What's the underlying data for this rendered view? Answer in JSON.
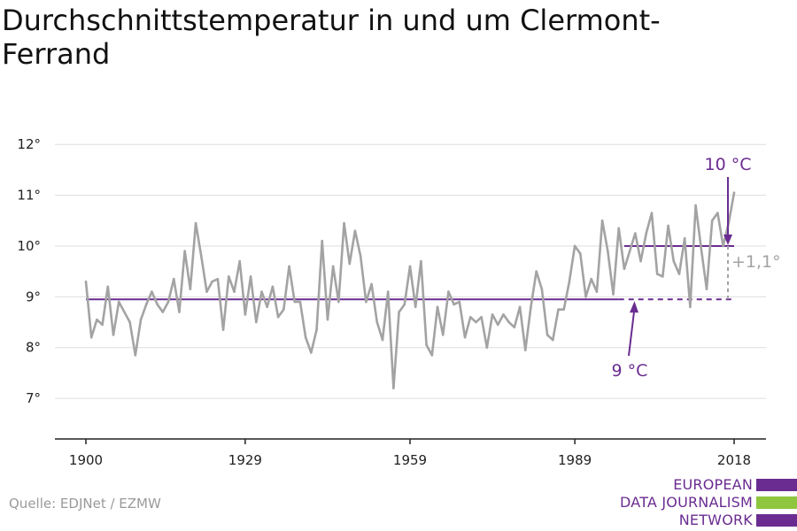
{
  "title": "Durchschnittstemperatur in und um Clermont-Ferrand",
  "source": "Quelle: EDJNet / EZMW",
  "logo": {
    "lines": [
      "EUROPEAN",
      "DATA JOURNALISM",
      "NETWORK"
    ],
    "colors": [
      "#6a2c91",
      "#8ec63f",
      "#6a2c91"
    ]
  },
  "colors": {
    "series": "#a3a3a3",
    "accent": "#6a2c91",
    "grid": "#dddddd",
    "axis": "#222222",
    "diff": "#a3a3a3"
  },
  "chart_data": {
    "type": "line",
    "x_ticks": [
      1900,
      1929,
      1959,
      1989,
      2018
    ],
    "y_ticks": [
      7,
      8,
      9,
      10,
      11,
      12
    ],
    "y_tick_suffix": "°",
    "xlim": [
      1900,
      2018
    ],
    "ylim": [
      6.2,
      12.3
    ],
    "series": [
      {
        "x_start": 1900,
        "values": [
          9.3,
          8.2,
          8.55,
          8.45,
          9.2,
          8.25,
          8.9,
          8.7,
          8.5,
          7.85,
          8.55,
          8.85,
          9.1,
          8.85,
          8.7,
          8.9,
          9.35,
          8.7,
          9.9,
          9.15,
          10.45,
          9.8,
          9.1,
          9.3,
          9.35,
          8.35,
          9.4,
          9.1,
          9.7,
          8.65,
          9.4,
          8.5,
          9.1,
          8.8,
          9.2,
          8.6,
          8.75,
          9.6,
          8.9,
          8.9,
          8.2,
          7.9,
          8.35,
          10.1,
          8.55,
          9.6,
          8.9,
          10.45,
          9.65,
          10.3,
          9.8,
          8.9,
          9.25,
          8.5,
          8.15,
          9.1,
          7.2,
          8.7,
          8.85,
          9.6,
          8.8,
          9.7,
          8.05,
          7.85,
          8.8,
          8.25,
          9.1,
          8.85,
          8.9,
          8.2,
          8.6,
          8.5,
          8.6,
          8.0,
          8.65,
          8.45,
          8.65,
          8.5,
          8.4,
          8.8,
          7.95,
          8.8,
          9.5,
          9.15,
          8.25,
          8.15,
          8.75,
          8.75,
          9.3,
          10.0,
          9.85,
          9.0,
          9.35,
          9.1,
          10.5,
          9.9,
          9.05,
          10.35,
          9.55,
          9.9,
          10.25,
          9.7,
          10.25,
          10.65,
          9.45,
          9.4,
          10.4,
          9.7,
          9.45,
          10.15,
          8.8,
          10.8,
          9.95,
          9.15,
          10.5,
          10.65,
          10.0,
          10.45,
          11.05
        ]
      }
    ],
    "reference_lines": [
      {
        "label": "9 °C",
        "value": 8.95,
        "x_from": 1900,
        "x_solid_to": 1997
      },
      {
        "label": "10 °C",
        "value": 10.0,
        "x_from": 1998,
        "x_solid_to": 2018
      }
    ],
    "difference_label": "+1,1°"
  }
}
